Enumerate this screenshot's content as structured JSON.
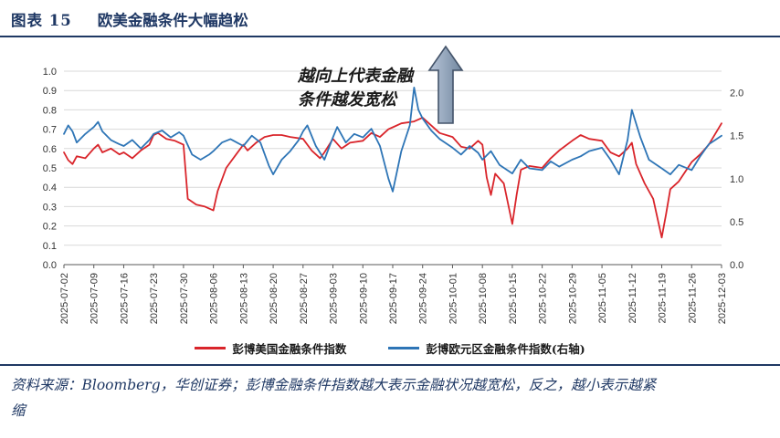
{
  "header": {
    "figure_label": "图表 15",
    "figure_title": "欧美金融条件大幅趋松"
  },
  "annotation": {
    "line1": "越向上代表金融",
    "line2": "条件越发宽松"
  },
  "footer": {
    "line1": "资料来源：Bloomberg，华创证券；彭博金融条件指数越大表示金融状况越宽松，反之，越小表示越紧",
    "line2": "缩"
  },
  "colors": {
    "title_navy": "#1F3864",
    "grid": "#D9D9D9",
    "axis": "#595959",
    "tick_label": "#333333",
    "annotation_text": "#1A1A1A",
    "arrow_fill_light": "#B9C6D9",
    "arrow_fill_dark": "#71879F",
    "arrow_stroke": "#44546A"
  },
  "chart_data": {
    "type": "line",
    "title": "欧美金融条件大幅趋松",
    "grid": true,
    "legend_position": "bottom",
    "annotation_text": "越向上代表金融条件越发宽松",
    "annotation_arrow": "up",
    "x_range_days": [
      0,
      154
    ],
    "x_tick_labels": [
      "2025-07-02",
      "2025-07-09",
      "2025-07-16",
      "2025-07-23",
      "2025-07-30",
      "2025-08-06",
      "2025-08-13",
      "2025-08-20",
      "2025-08-27",
      "2025-09-03",
      "2025-09-10",
      "2025-09-17",
      "2025-09-24",
      "2025-10-01",
      "2025-10-08",
      "2025-10-15",
      "2025-10-22",
      "2025-10-29",
      "2025-11-05",
      "2025-11-12",
      "2025-11-19",
      "2025-11-26",
      "2025-12-03"
    ],
    "left_axis": {
      "min": 0.0,
      "max": 1.0,
      "ticks": [
        1.0,
        0.9,
        0.8,
        0.7,
        0.6,
        0.5,
        0.4,
        0.3,
        0.2,
        0.1,
        0.0
      ]
    },
    "right_axis": {
      "min": 0.0,
      "max": 2.25,
      "ticks": [
        2.0,
        1.5,
        1.0,
        0.5,
        0.0
      ]
    },
    "series": [
      {
        "name": "彭博美国金融条件指数",
        "axis": "left",
        "color": "#D9252B",
        "points": [
          [
            0,
            0.58
          ],
          [
            1,
            0.54
          ],
          [
            2,
            0.52
          ],
          [
            3,
            0.56
          ],
          [
            5,
            0.55
          ],
          [
            7,
            0.6
          ],
          [
            8,
            0.62
          ],
          [
            9,
            0.58
          ],
          [
            11,
            0.6
          ],
          [
            13,
            0.57
          ],
          [
            14,
            0.58
          ],
          [
            16,
            0.55
          ],
          [
            18,
            0.59
          ],
          [
            20,
            0.62
          ],
          [
            21,
            0.67
          ],
          [
            22,
            0.68
          ],
          [
            24,
            0.65
          ],
          [
            26,
            0.64
          ],
          [
            28,
            0.62
          ],
          [
            29,
            0.34
          ],
          [
            31,
            0.31
          ],
          [
            33,
            0.3
          ],
          [
            35,
            0.28
          ],
          [
            36,
            0.38
          ],
          [
            38,
            0.5
          ],
          [
            40,
            0.56
          ],
          [
            42,
            0.62
          ],
          [
            43,
            0.59
          ],
          [
            45,
            0.63
          ],
          [
            47,
            0.66
          ],
          [
            49,
            0.67
          ],
          [
            51,
            0.67
          ],
          [
            53,
            0.66
          ],
          [
            56,
            0.65
          ],
          [
            58,
            0.59
          ],
          [
            60,
            0.55
          ],
          [
            61,
            0.58
          ],
          [
            63,
            0.65
          ],
          [
            65,
            0.6
          ],
          [
            67,
            0.63
          ],
          [
            70,
            0.64
          ],
          [
            72,
            0.68
          ],
          [
            74,
            0.66
          ],
          [
            76,
            0.7
          ],
          [
            77,
            0.71
          ],
          [
            79,
            0.73
          ],
          [
            82,
            0.74
          ],
          [
            84,
            0.76
          ],
          [
            86,
            0.72
          ],
          [
            88,
            0.68
          ],
          [
            91,
            0.66
          ],
          [
            93,
            0.61
          ],
          [
            95,
            0.6
          ],
          [
            97,
            0.64
          ],
          [
            98,
            0.62
          ],
          [
            99,
            0.45
          ],
          [
            100,
            0.36
          ],
          [
            101,
            0.47
          ],
          [
            103,
            0.42
          ],
          [
            105,
            0.21
          ],
          [
            106,
            0.36
          ],
          [
            107,
            0.49
          ],
          [
            109,
            0.51
          ],
          [
            112,
            0.5
          ],
          [
            114,
            0.55
          ],
          [
            116,
            0.59
          ],
          [
            119,
            0.64
          ],
          [
            121,
            0.67
          ],
          [
            123,
            0.65
          ],
          [
            126,
            0.64
          ],
          [
            128,
            0.58
          ],
          [
            130,
            0.56
          ],
          [
            132,
            0.6
          ],
          [
            133,
            0.63
          ],
          [
            134,
            0.52
          ],
          [
            136,
            0.42
          ],
          [
            138,
            0.34
          ],
          [
            140,
            0.14
          ],
          [
            141,
            0.26
          ],
          [
            142,
            0.39
          ],
          [
            144,
            0.43
          ],
          [
            147,
            0.53
          ],
          [
            149,
            0.57
          ],
          [
            151,
            0.62
          ],
          [
            154,
            0.73
          ]
        ]
      },
      {
        "name": "彭博欧元区金融条件指数(右轴)",
        "axis": "right",
        "color": "#2E75B6",
        "points": [
          [
            0,
            1.52
          ],
          [
            1,
            1.62
          ],
          [
            2,
            1.55
          ],
          [
            3,
            1.42
          ],
          [
            5,
            1.52
          ],
          [
            7,
            1.6
          ],
          [
            8,
            1.66
          ],
          [
            9,
            1.55
          ],
          [
            11,
            1.45
          ],
          [
            13,
            1.4
          ],
          [
            14,
            1.38
          ],
          [
            16,
            1.45
          ],
          [
            18,
            1.35
          ],
          [
            20,
            1.45
          ],
          [
            21,
            1.52
          ],
          [
            23,
            1.56
          ],
          [
            25,
            1.48
          ],
          [
            27,
            1.54
          ],
          [
            28,
            1.5
          ],
          [
            30,
            1.28
          ],
          [
            32,
            1.22
          ],
          [
            34,
            1.28
          ],
          [
            35,
            1.32
          ],
          [
            37,
            1.42
          ],
          [
            39,
            1.46
          ],
          [
            42,
            1.38
          ],
          [
            44,
            1.5
          ],
          [
            46,
            1.42
          ],
          [
            48,
            1.15
          ],
          [
            49,
            1.05
          ],
          [
            51,
            1.22
          ],
          [
            53,
            1.32
          ],
          [
            55,
            1.45
          ],
          [
            56,
            1.55
          ],
          [
            57,
            1.62
          ],
          [
            59,
            1.38
          ],
          [
            61,
            1.22
          ],
          [
            63,
            1.48
          ],
          [
            64,
            1.6
          ],
          [
            66,
            1.42
          ],
          [
            68,
            1.52
          ],
          [
            70,
            1.48
          ],
          [
            72,
            1.58
          ],
          [
            74,
            1.38
          ],
          [
            76,
            1.0
          ],
          [
            77,
            0.85
          ],
          [
            79,
            1.32
          ],
          [
            81,
            1.62
          ],
          [
            82,
            2.06
          ],
          [
            83,
            1.8
          ],
          [
            84,
            1.7
          ],
          [
            86,
            1.56
          ],
          [
            88,
            1.46
          ],
          [
            91,
            1.36
          ],
          [
            93,
            1.28
          ],
          [
            95,
            1.38
          ],
          [
            97,
            1.3
          ],
          [
            98,
            1.22
          ],
          [
            100,
            1.32
          ],
          [
            102,
            1.16
          ],
          [
            105,
            1.06
          ],
          [
            107,
            1.22
          ],
          [
            109,
            1.12
          ],
          [
            112,
            1.1
          ],
          [
            114,
            1.2
          ],
          [
            116,
            1.14
          ],
          [
            119,
            1.22
          ],
          [
            121,
            1.26
          ],
          [
            123,
            1.32
          ],
          [
            126,
            1.36
          ],
          [
            128,
            1.22
          ],
          [
            130,
            1.05
          ],
          [
            132,
            1.45
          ],
          [
            133,
            1.8
          ],
          [
            135,
            1.48
          ],
          [
            137,
            1.22
          ],
          [
            140,
            1.12
          ],
          [
            142,
            1.05
          ],
          [
            144,
            1.16
          ],
          [
            147,
            1.1
          ],
          [
            149,
            1.26
          ],
          [
            151,
            1.4
          ],
          [
            154,
            1.5
          ]
        ]
      }
    ]
  }
}
